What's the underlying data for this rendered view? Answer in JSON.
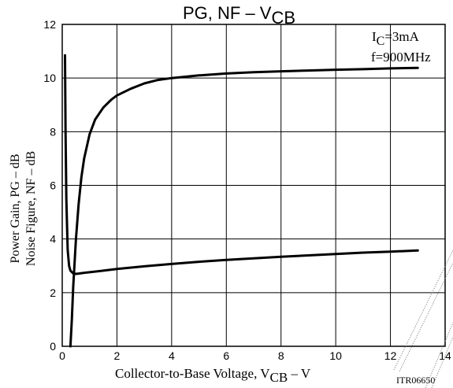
{
  "chart_data": {
    "type": "line",
    "title": {
      "main": "PG, NF  –  V",
      "sub": "CB"
    },
    "ylabel": {
      "line1": "Power Gain, PG  –  dB",
      "line2": "Noise Figure, NF  –  dB"
    },
    "xlabel": {
      "main": "Collector-to-Base Voltage, V",
      "sub": "CB",
      "tail": "  –  V"
    },
    "xlim": [
      0,
      14
    ],
    "ylim": [
      0,
      12
    ],
    "x_ticks": [
      0,
      2,
      4,
      6,
      8,
      10,
      12,
      14
    ],
    "y_ticks": [
      0,
      2,
      4,
      6,
      8,
      10,
      12
    ],
    "grid": true,
    "annotations": {
      "condition1_main": "I",
      "condition1_sub": "C",
      "condition1_tail": "=3mA",
      "condition2": "f=900MHz",
      "code": "ITR06650"
    },
    "series": [
      {
        "x": [
          0.3,
          0.35,
          0.4,
          0.5,
          0.6,
          0.7,
          0.8,
          1.0,
          1.2,
          1.5,
          1.8,
          2.0,
          2.5,
          3.0,
          3.5,
          4.0,
          5.0,
          6.0,
          7.0,
          8.0,
          9.0,
          10.0,
          11.0,
          12.0,
          13.0
        ],
        "y": [
          0.0,
          1.0,
          2.2,
          4.0,
          5.3,
          6.3,
          7.0,
          7.9,
          8.45,
          8.9,
          9.2,
          9.35,
          9.6,
          9.8,
          9.93,
          10.0,
          10.1,
          10.17,
          10.22,
          10.25,
          10.28,
          10.31,
          10.33,
          10.36,
          10.38
        ]
      },
      {
        "x": [
          0.1,
          0.12,
          0.15,
          0.2,
          0.25,
          0.3,
          0.4,
          0.5,
          0.6,
          0.8,
          1.0,
          1.5,
          2.0,
          3.0,
          4.0,
          5.0,
          6.0,
          7.0,
          8.0,
          9.0,
          10.0,
          11.0,
          12.0,
          13.0
        ],
        "y": [
          10.85,
          8.0,
          5.5,
          3.6,
          3.0,
          2.82,
          2.72,
          2.7,
          2.71,
          2.74,
          2.76,
          2.82,
          2.88,
          2.98,
          3.07,
          3.15,
          3.22,
          3.28,
          3.34,
          3.39,
          3.44,
          3.49,
          3.53,
          3.57
        ]
      }
    ]
  }
}
